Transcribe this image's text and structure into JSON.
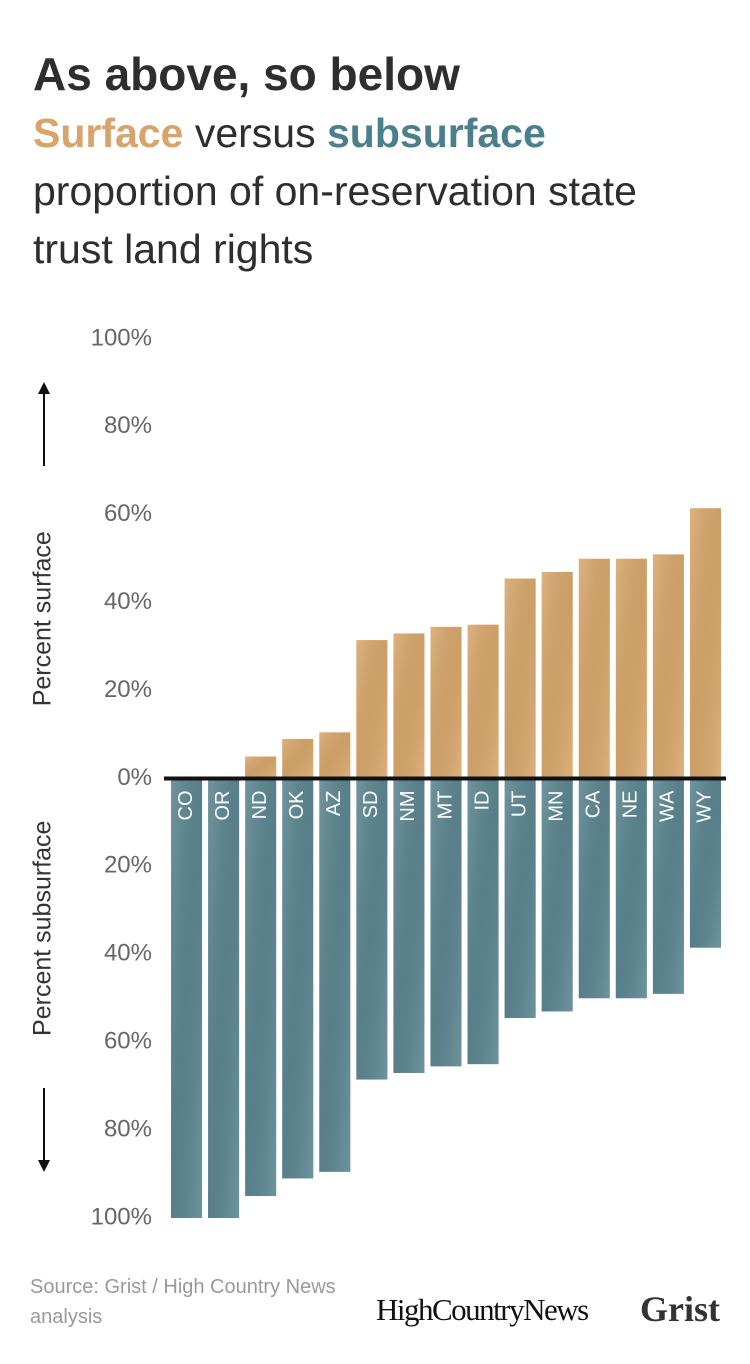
{
  "title": "As above, so below",
  "subtitle_middle": "versus",
  "subtitle_end": "proportion of on-reservation state trust land rights",
  "source": "Source: Grist / High Country News analysis",
  "logos": [
    "HighCountryNews",
    "Grist"
  ],
  "chart_data": {
    "type": "bar",
    "ylabel_top": "Percent surface",
    "ylabel_bottom": "Percent subsurface",
    "categories": [
      "CO",
      "OR",
      "ND",
      "OK",
      "AZ",
      "SD",
      "NM",
      "MT",
      "ID",
      "UT",
      "MN",
      "CA",
      "NE",
      "WA",
      "WY"
    ],
    "series": [
      {
        "name": "Surface",
        "color": "#d9a86e",
        "values": [
          0,
          0,
          5,
          9,
          10.5,
          31.5,
          33,
          34.5,
          35,
          45.5,
          47,
          50,
          50,
          51,
          61.5
        ]
      },
      {
        "name": "subsurface",
        "color": "#5d8792",
        "values": [
          -100,
          -100,
          -95,
          -91,
          -89.5,
          -68.5,
          -67,
          -65.5,
          -65,
          -54.5,
          -53,
          -50,
          -50,
          -49,
          -38.5
        ]
      }
    ],
    "ylim": [
      -100,
      100
    ],
    "yticks": [
      {
        "value": 100,
        "label": "100%"
      },
      {
        "value": 80,
        "label": "80%"
      },
      {
        "value": 60,
        "label": "60%"
      },
      {
        "value": 40,
        "label": "40%"
      },
      {
        "value": 20,
        "label": "20%"
      },
      {
        "value": 0,
        "label": "0%"
      },
      {
        "value": -20,
        "label": "20%"
      },
      {
        "value": -40,
        "label": "40%"
      },
      {
        "value": -60,
        "label": "60%"
      },
      {
        "value": -80,
        "label": "80%"
      },
      {
        "value": -100,
        "label": "100%"
      }
    ],
    "grid": false
  }
}
